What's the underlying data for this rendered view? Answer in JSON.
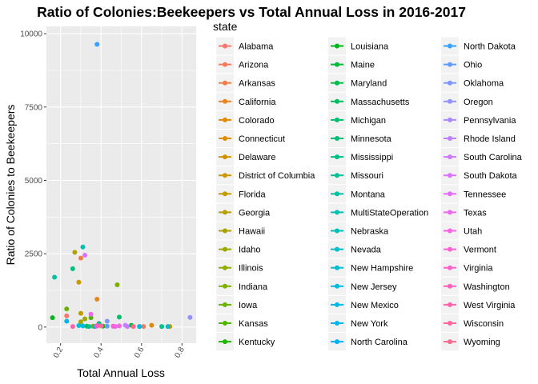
{
  "chart_data": {
    "type": "scatter",
    "title": "Ratio of Colonies:Beekeepers vs Total Annual Loss in 2016-2017",
    "xlabel": "Total Annual Loss",
    "ylabel": "Ratio of Colonies to Beekeepers",
    "xlim": [
      0.13,
      0.87
    ],
    "ylim": [
      -550,
      10250
    ],
    "x_ticks": [
      0.2,
      0.4,
      0.6,
      0.8
    ],
    "x_tick_labels": [
      "0.2",
      "0.4",
      "0.6",
      "0.8"
    ],
    "y_ticks": [
      0,
      2500,
      5000,
      7500,
      10000
    ],
    "y_tick_labels": [
      "0",
      "2500",
      "5000",
      "7500",
      "10000"
    ],
    "grid": true,
    "background": "#ebebeb",
    "legend_title": "state",
    "legend_placement": "right",
    "series": [
      {
        "name": "Alabama",
        "color": "#F8766D",
        "points": [
          [
            0.23,
            380
          ]
        ]
      },
      {
        "name": "Arizona",
        "color": "#F47A5B",
        "points": [
          [
            0.61,
            20
          ]
        ]
      },
      {
        "name": "Arkansas",
        "color": "#EF7F48",
        "points": [
          [
            0.3,
            2350
          ]
        ]
      },
      {
        "name": "California",
        "color": "#E7851E",
        "points": [
          [
            0.38,
            950
          ]
        ]
      },
      {
        "name": "Colorado",
        "color": "#E28A00",
        "points": [
          [
            0.65,
            60
          ]
        ]
      },
      {
        "name": "Connecticut",
        "color": "#DB8E00",
        "points": [
          [
            0.59,
            20
          ]
        ]
      },
      {
        "name": "Delaware",
        "color": "#D29200",
        "points": [
          [
            0.74,
            20
          ]
        ]
      },
      {
        "name": "District of Columbia",
        "color": "#C99700",
        "points": [
          [
            0.29,
            1530
          ]
        ]
      },
      {
        "name": "Florida",
        "color": "#BF9B00",
        "points": [
          [
            0.3,
            470
          ]
        ]
      },
      {
        "name": "Georgia",
        "color": "#B49F00",
        "points": [
          [
            0.27,
            2550
          ]
        ]
      },
      {
        "name": "Hawaii",
        "color": "#A9A300",
        "points": [
          [
            0.3,
            180
          ]
        ]
      },
      {
        "name": "Idaho",
        "color": "#9CA700",
        "points": [
          [
            0.32,
            280
          ]
        ]
      },
      {
        "name": "Illinois",
        "color": "#8EAB00",
        "points": [
          [
            0.36,
            30
          ]
        ]
      },
      {
        "name": "Indiana",
        "color": "#7DAE00",
        "points": [
          [
            0.48,
            1440
          ]
        ]
      },
      {
        "name": "Iowa",
        "color": "#6AB100",
        "points": [
          [
            0.23,
            620
          ]
        ]
      },
      {
        "name": "Kansas",
        "color": "#50B400",
        "points": [
          [
            0.35,
            320
          ]
        ]
      },
      {
        "name": "Kentucky",
        "color": "#1EB600",
        "points": [
          [
            0.41,
            30
          ]
        ]
      },
      {
        "name": "Louisiana",
        "color": "#00B81A",
        "points": [
          [
            0.16,
            320
          ]
        ]
      },
      {
        "name": "Maine",
        "color": "#00BA38",
        "points": [
          [
            0.55,
            60
          ]
        ]
      },
      {
        "name": "Maryland",
        "color": "#00BB4B",
        "points": [
          [
            0.33,
            30
          ]
        ]
      },
      {
        "name": "Massachusetts",
        "color": "#00BC5C",
        "points": [
          [
            0.39,
            120
          ]
        ]
      },
      {
        "name": "Michigan",
        "color": "#00BE6C",
        "points": [
          [
            0.49,
            340
          ]
        ]
      },
      {
        "name": "Minnesota",
        "color": "#00BE7A",
        "points": [
          [
            0.26,
            1990
          ]
        ]
      },
      {
        "name": "Mississippi",
        "color": "#00BF88",
        "points": [
          [
            0.7,
            20
          ]
        ]
      },
      {
        "name": "Missouri",
        "color": "#00C095",
        "points": [
          [
            0.34,
            20
          ]
        ]
      },
      {
        "name": "Montana",
        "color": "#00C0A2",
        "points": [
          [
            0.17,
            1700
          ]
        ]
      },
      {
        "name": "MultiStateOperation",
        "color": "#00C0AF",
        "points": [
          [
            0.31,
            2730
          ]
        ]
      },
      {
        "name": "Nebraska",
        "color": "#00BFBB",
        "points": [
          [
            0.39,
            70
          ]
        ]
      },
      {
        "name": "Nevada",
        "color": "#00BFC6",
        "points": [
          [
            0.73,
            20
          ]
        ]
      },
      {
        "name": "New Hampshire",
        "color": "#00BDD0",
        "points": [
          [
            0.29,
            50
          ]
        ]
      },
      {
        "name": "New Jersey",
        "color": "#00BBDA",
        "points": [
          [
            0.31,
            40
          ]
        ]
      },
      {
        "name": "New Mexico",
        "color": "#00B9E3",
        "points": [
          [
            0.59,
            20
          ]
        ]
      },
      {
        "name": "New York",
        "color": "#00B6EB",
        "points": [
          [
            0.23,
            200
          ]
        ]
      },
      {
        "name": "North Carolina",
        "color": "#00B2F3",
        "points": [
          [
            0.37,
            20
          ]
        ]
      },
      {
        "name": "North Dakota",
        "color": "#35A2FF",
        "points": [
          [
            0.38,
            9640
          ]
        ]
      },
      {
        "name": "Ohio",
        "color": "#619CFF",
        "points": [
          [
            0.43,
            30
          ]
        ]
      },
      {
        "name": "Oklahoma",
        "color": "#7D97FF",
        "points": [
          [
            0.43,
            200
          ]
        ]
      },
      {
        "name": "Oregon",
        "color": "#9590FF",
        "points": [
          [
            0.84,
            330
          ]
        ]
      },
      {
        "name": "Pennsylvania",
        "color": "#AA88FF",
        "points": [
          [
            0.46,
            30
          ]
        ]
      },
      {
        "name": "Rhode Island",
        "color": "#BC81FF",
        "points": [
          [
            0.53,
            20
          ]
        ]
      },
      {
        "name": "South Carolina",
        "color": "#CC7AFF",
        "points": [
          [
            0.52,
            60
          ]
        ]
      },
      {
        "name": "South Dakota",
        "color": "#DA72FB",
        "points": [
          [
            0.32,
            2450
          ]
        ]
      },
      {
        "name": "Tennessee",
        "color": "#E56DF5",
        "points": [
          [
            0.47,
            20
          ]
        ]
      },
      {
        "name": "Texas",
        "color": "#EE67EE",
        "points": [
          [
            0.35,
            440
          ]
        ]
      },
      {
        "name": "Utah",
        "color": "#F564E3",
        "points": [
          [
            0.49,
            40
          ]
        ]
      },
      {
        "name": "Vermont",
        "color": "#FA62D6",
        "points": [
          [
            0.46,
            30
          ]
        ]
      },
      {
        "name": "Virginia",
        "color": "#FD61C9",
        "points": [
          [
            0.38,
            30
          ]
        ]
      },
      {
        "name": "Washington",
        "color": "#FF61BB",
        "points": [
          [
            0.38,
            50
          ]
        ]
      },
      {
        "name": "West Virginia",
        "color": "#FF63AD",
        "points": [
          [
            0.26,
            20
          ]
        ]
      },
      {
        "name": "Wisconsin",
        "color": "#FE679E",
        "points": [
          [
            0.4,
            40
          ]
        ]
      },
      {
        "name": "Wyoming",
        "color": "#FA6B8F",
        "points": [
          [
            0.56,
            20
          ]
        ]
      }
    ]
  }
}
